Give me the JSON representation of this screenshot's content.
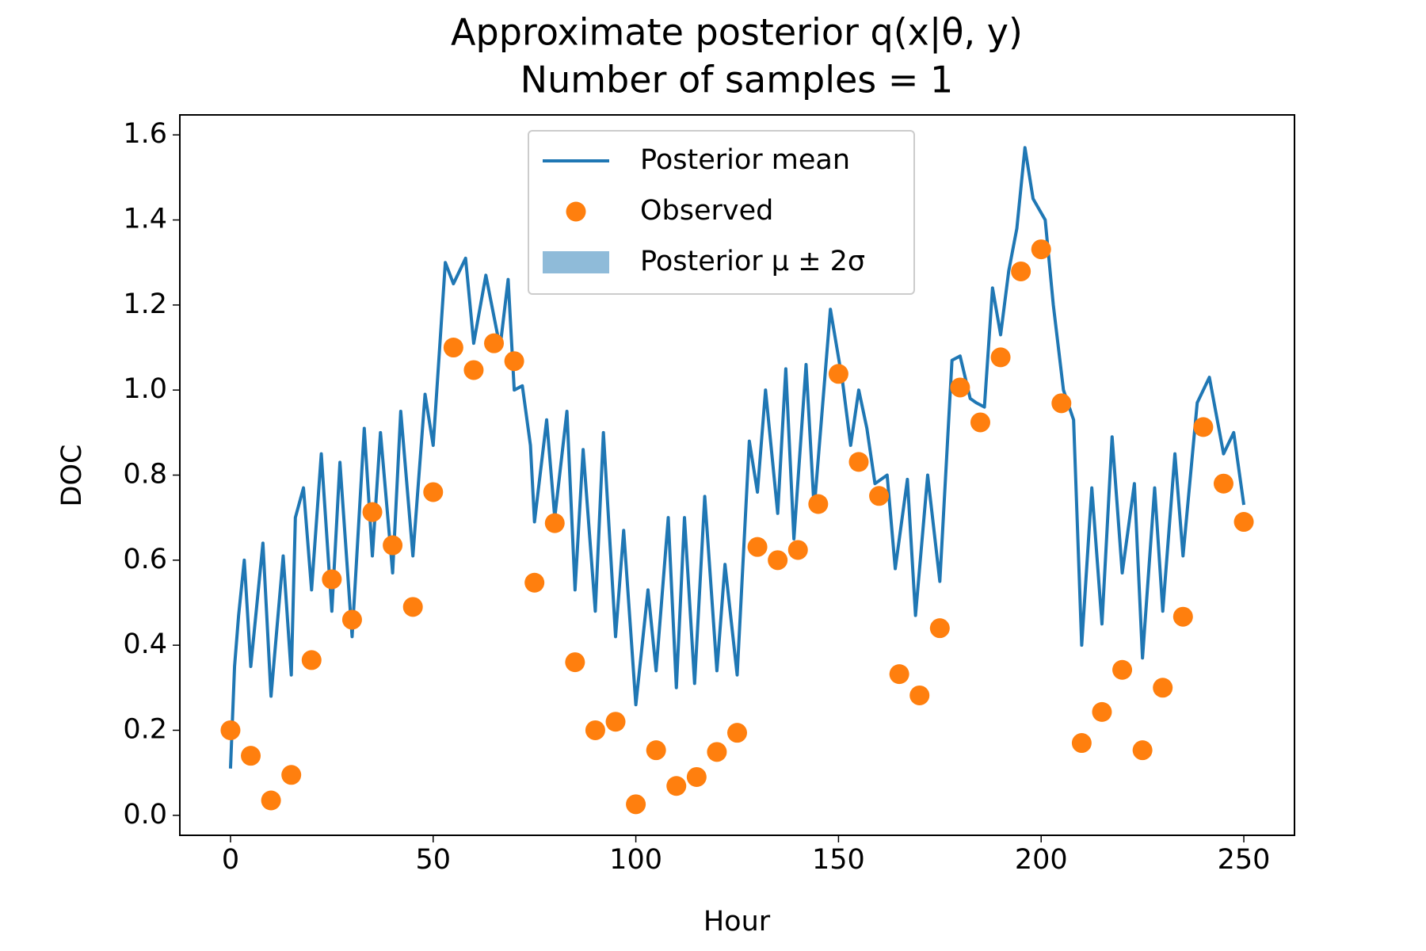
{
  "chart_data": {
    "type": "line",
    "title": "Approximate posterior q(x|θ, y)",
    "subtitle": "Number of samples = 1",
    "xlabel": "Hour",
    "ylabel": "DOC",
    "xlim": [
      -12.5,
      262.5
    ],
    "ylim": [
      -0.047,
      1.647
    ],
    "xticks": [
      0,
      50,
      100,
      150,
      200,
      250
    ],
    "yticks": [
      {
        "value": 0,
        "label": "0.0"
      },
      0.2,
      0.4,
      0.6,
      0.8,
      {
        "value": 1,
        "label": "1.0"
      },
      1.2,
      1.4,
      1.6
    ],
    "legend": "upper center",
    "series": [
      {
        "name": "Posterior mean",
        "color": "#1f77b4",
        "kind": "line",
        "x": [
          0,
          1,
          2,
          3.4,
          5,
          8,
          10,
          13,
          15,
          16,
          18,
          20,
          22.4,
          25,
          27,
          30,
          33,
          35,
          37,
          40,
          42,
          45,
          48,
          50,
          53,
          55,
          58,
          60,
          63,
          66.5,
          68.5,
          70,
          72,
          74,
          75,
          78,
          80,
          83,
          85,
          87,
          90,
          92,
          95,
          97,
          100,
          103,
          105,
          108,
          110,
          112,
          114.5,
          117,
          120,
          122,
          125,
          128,
          130,
          132,
          135,
          137,
          139,
          142,
          144,
          148,
          151,
          153,
          155,
          157,
          159,
          162,
          164,
          167,
          169,
          172,
          175,
          178,
          180,
          182.5,
          184,
          186,
          188,
          190,
          192,
          194,
          196,
          198,
          201,
          203,
          205.5,
          208,
          210,
          212.5,
          215,
          217.5,
          220,
          223,
          225,
          228,
          230,
          233,
          235,
          238.5,
          241.5,
          245,
          247.5,
          250
        ],
        "values": [
          0.11,
          0.35,
          0.47,
          0.6,
          0.35,
          0.64,
          0.28,
          0.61,
          0.33,
          0.7,
          0.77,
          0.53,
          0.85,
          0.48,
          0.83,
          0.42,
          0.91,
          0.61,
          0.9,
          0.57,
          0.95,
          0.61,
          0.99,
          0.87,
          1.3,
          1.25,
          1.31,
          1.11,
          1.27,
          1.1,
          1.26,
          1.0,
          1.01,
          0.87,
          0.69,
          0.93,
          0.7,
          0.95,
          0.53,
          0.86,
          0.48,
          0.9,
          0.42,
          0.67,
          0.26,
          0.53,
          0.34,
          0.7,
          0.3,
          0.7,
          0.31,
          0.75,
          0.34,
          0.59,
          0.33,
          0.88,
          0.76,
          1.0,
          0.71,
          1.05,
          0.65,
          1.06,
          0.72,
          1.19,
          1.02,
          0.87,
          1.0,
          0.91,
          0.78,
          0.8,
          0.58,
          0.79,
          0.47,
          0.8,
          0.55,
          1.07,
          1.08,
          0.98,
          0.97,
          0.96,
          1.24,
          1.13,
          1.28,
          1.38,
          1.57,
          1.45,
          1.4,
          1.2,
          1.0,
          0.93,
          0.4,
          0.77,
          0.45,
          0.89,
          0.57,
          0.78,
          0.37,
          0.77,
          0.48,
          0.85,
          0.61,
          0.97,
          1.03,
          0.85,
          0.9,
          0.73
        ]
      },
      {
        "name": "Observed",
        "color": "#ff7f0e",
        "kind": "points",
        "x": [
          0,
          5,
          10,
          15,
          20,
          25,
          30,
          35,
          40,
          45,
          50,
          55,
          60,
          65,
          70,
          75,
          80,
          85,
          90,
          95,
          100,
          105,
          110,
          115,
          120,
          125,
          130,
          135,
          140,
          145,
          150,
          155,
          160,
          165,
          170,
          175,
          180,
          185,
          190,
          195,
          200,
          205,
          210,
          215,
          220,
          225,
          230,
          235,
          240,
          245,
          250
        ],
        "values": [
          0.2,
          0.14,
          0.035,
          0.095,
          0.365,
          0.555,
          0.46,
          0.713,
          0.635,
          0.49,
          0.76,
          1.1,
          1.047,
          1.11,
          1.068,
          0.547,
          0.687,
          0.36,
          0.2,
          0.22,
          0.026,
          0.153,
          0.069,
          0.09,
          0.149,
          0.194,
          0.631,
          0.6,
          0.624,
          0.732,
          1.038,
          0.831,
          0.751,
          0.332,
          0.282,
          0.44,
          1.006,
          0.924,
          1.077,
          1.279,
          1.331,
          0.969,
          0.17,
          0.243,
          0.342,
          0.153,
          0.3,
          0.467,
          0.913,
          0.78,
          0.69
        ]
      },
      {
        "name": "Posterior μ ± 2σ",
        "color": "#1f77b4",
        "kind": "band"
      }
    ]
  }
}
